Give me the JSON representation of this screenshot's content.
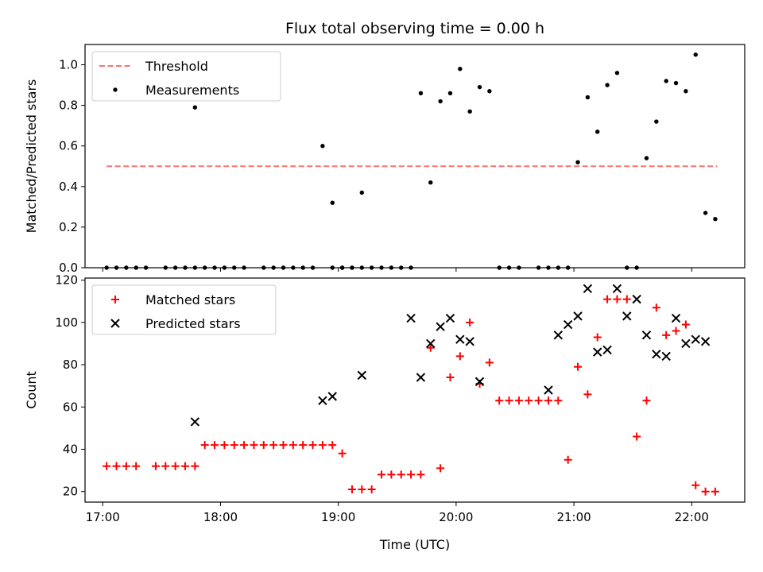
{
  "figure": {
    "title": "Flux total observing time = 0.00 h"
  },
  "chart_data": [
    {
      "type": "scatter",
      "panel": "top",
      "title": "Flux total observing time = 0.00 h",
      "xlabel": "",
      "ylabel": "Matched/Predicted stars",
      "xlim": [
        "16:51",
        "22:27"
      ],
      "ylim": [
        0,
        1.1
      ],
      "yticks": [
        0.0,
        0.2,
        0.4,
        0.6,
        0.8,
        1.0
      ],
      "xticks": [
        "17:00",
        "18:00",
        "19:00",
        "20:00",
        "21:00",
        "22:00"
      ],
      "legend_position": "top-left",
      "series": [
        {
          "name": "Threshold",
          "kind": "line",
          "style": "dashed",
          "color": "#ff7070",
          "x": [
            "17:02",
            "22:13"
          ],
          "y": [
            0.5,
            0.5
          ]
        },
        {
          "name": "Measurements",
          "kind": "points",
          "color": "#000000",
          "x": [
            "17:02",
            "17:07",
            "17:12",
            "17:17",
            "17:22",
            "17:32",
            "17:37",
            "17:42",
            "17:47",
            "17:52",
            "17:57",
            "17:47",
            "18:02",
            "18:07",
            "18:12",
            "18:22",
            "18:27",
            "18:32",
            "18:37",
            "18:42",
            "18:47",
            "18:57",
            "19:02",
            "19:07",
            "19:12",
            "19:17",
            "18:52",
            "18:57",
            "19:02",
            "19:07",
            "19:12",
            "19:22",
            "19:27",
            "19:32",
            "19:37",
            "19:42",
            "19:47",
            "19:52",
            "19:57",
            "20:02",
            "20:07",
            "20:12",
            "20:17",
            "20:22",
            "20:27",
            "20:32",
            "20:42",
            "20:47",
            "20:52",
            "20:57",
            "21:02",
            "21:07",
            "21:12",
            "21:17",
            "21:22",
            "21:27",
            "21:32",
            "21:37",
            "21:42",
            "21:47",
            "21:52",
            "21:57",
            "22:02",
            "22:07",
            "22:12"
          ],
          "y": [
            0,
            0,
            0,
            0,
            0,
            0,
            0,
            0,
            0,
            0,
            0,
            0.79,
            0,
            0,
            0,
            0,
            0,
            0,
            0,
            0,
            0,
            0,
            0,
            0,
            0,
            0,
            0.6,
            0.32,
            0,
            0,
            0.37,
            0,
            0,
            0,
            0,
            0.86,
            0.42,
            0.82,
            0.86,
            0.98,
            0.77,
            0.89,
            0.87,
            0,
            0,
            0,
            0,
            0,
            0,
            0,
            0.52,
            0.84,
            0.67,
            0.9,
            0.96,
            0,
            0,
            0.54,
            0.72,
            0.92,
            0.91,
            0.87,
            1.05,
            0.27,
            0.24
          ]
        }
      ]
    },
    {
      "type": "scatter",
      "panel": "bottom",
      "xlabel": "Time (UTC)",
      "ylabel": "Count",
      "xlim": [
        "16:51",
        "22:27"
      ],
      "ylim": [
        15,
        121
      ],
      "yticks": [
        20,
        40,
        60,
        80,
        100,
        120
      ],
      "xticks": [
        "17:00",
        "18:00",
        "19:00",
        "20:00",
        "21:00",
        "22:00"
      ],
      "legend_position": "top-left",
      "series": [
        {
          "name": "Matched stars",
          "marker": "plus",
          "color": "#ff0000",
          "x": [
            "17:02",
            "17:07",
            "17:12",
            "17:17",
            "17:27",
            "17:32",
            "17:37",
            "17:42",
            "17:47",
            "17:52",
            "17:57",
            "18:02",
            "18:07",
            "18:12",
            "18:17",
            "18:22",
            "18:27",
            "18:32",
            "18:37",
            "18:42",
            "18:47",
            "18:52",
            "18:57",
            "19:02",
            "19:07",
            "19:12",
            "19:17",
            "19:22",
            "19:27",
            "19:32",
            "19:37",
            "19:42",
            "19:47",
            "19:52",
            "19:57",
            "20:02",
            "20:07",
            "20:12",
            "20:17",
            "20:22",
            "20:27",
            "20:32",
            "20:37",
            "20:42",
            "20:47",
            "20:52",
            "20:57",
            "21:02",
            "21:07",
            "21:12",
            "21:17",
            "21:22",
            "21:27",
            "21:32",
            "21:37",
            "21:42",
            "21:47",
            "21:52",
            "21:57",
            "22:02",
            "22:07",
            "22:12"
          ],
          "y": [
            32,
            32,
            32,
            32,
            32,
            32,
            32,
            32,
            32,
            42,
            42,
            42,
            42,
            42,
            42,
            42,
            42,
            42,
            42,
            42,
            42,
            42,
            42,
            38,
            21,
            21,
            21,
            28,
            28,
            28,
            28,
            28,
            88,
            31,
            74,
            84,
            100,
            71,
            81,
            63,
            63,
            63,
            63,
            63,
            63,
            63,
            35,
            79,
            66,
            93,
            111,
            111,
            111,
            46,
            63,
            107,
            94,
            96,
            99,
            23,
            20,
            20
          ]
        },
        {
          "name": "Predicted stars",
          "marker": "x",
          "color": "#000000",
          "x": [
            "17:47",
            "18:52",
            "18:57",
            "19:12",
            "19:37",
            "19:42",
            "19:47",
            "19:52",
            "19:57",
            "20:02",
            "20:07",
            "20:12",
            "20:47",
            "20:52",
            "20:57",
            "21:02",
            "21:07",
            "21:12",
            "21:17",
            "21:22",
            "21:27",
            "21:32",
            "21:37",
            "21:42",
            "21:47",
            "21:52",
            "21:57",
            "22:02",
            "22:07"
          ],
          "y": [
            53,
            63,
            65,
            75,
            102,
            74,
            90,
            98,
            102,
            92,
            91,
            72,
            68,
            94,
            99,
            103,
            116,
            86,
            87,
            116,
            103,
            111,
            94,
            85,
            84,
            102,
            90,
            92,
            91
          ]
        }
      ]
    }
  ]
}
